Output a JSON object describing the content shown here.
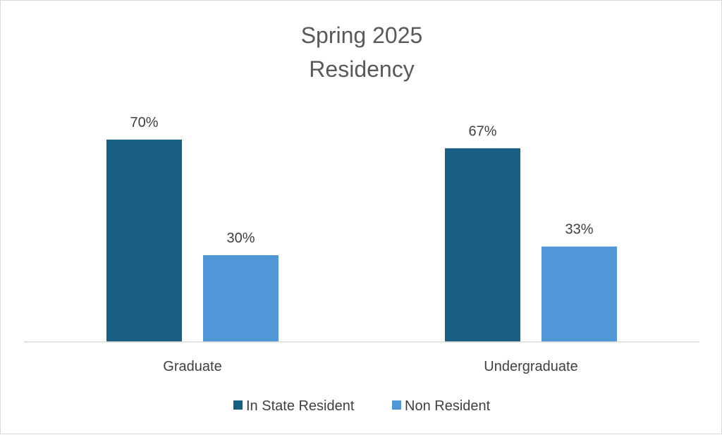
{
  "chart_data": {
    "type": "bar",
    "title": [
      "Spring 2025",
      "Residency"
    ],
    "categories": [
      "Graduate",
      "Undergraduate"
    ],
    "series": [
      {
        "name": "In State Resident",
        "values": [
          70,
          67
        ],
        "labels": [
          "70%",
          "67%"
        ],
        "color": "#195e83"
      },
      {
        "name": "Non Resident",
        "values": [
          30,
          33
        ],
        "labels": [
          "30%",
          "33%"
        ],
        "color": "#5097d8"
      }
    ],
    "ylim": [
      0,
      100
    ],
    "grid": false,
    "legend_position": "bottom"
  }
}
